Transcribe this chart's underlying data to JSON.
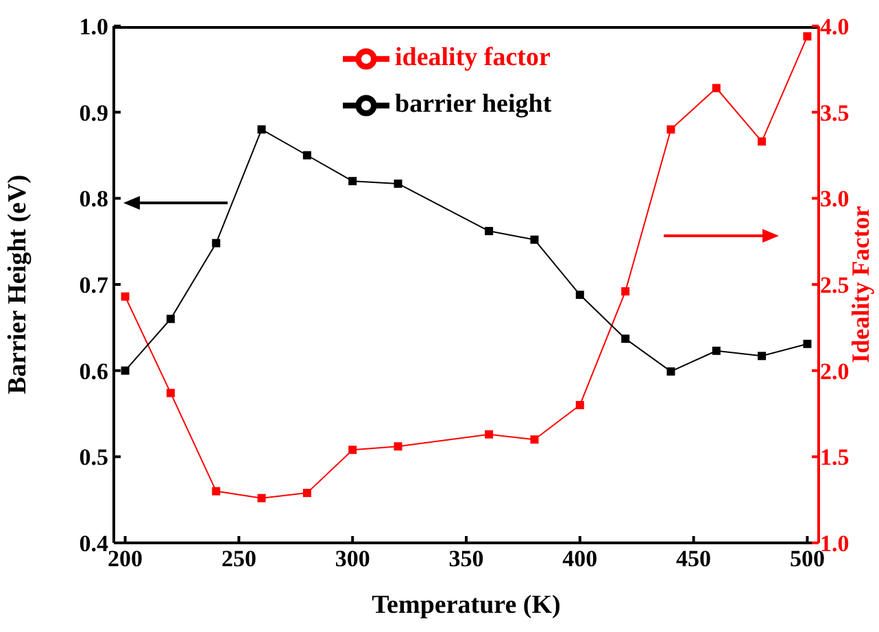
{
  "chart_data": {
    "type": "line",
    "xlabel": "Temperature (K)",
    "ylabel": "Barrier Height (eV)",
    "y2label": "Ideality Factor",
    "x": [
      200,
      220,
      240,
      260,
      280,
      300,
      320,
      360,
      380,
      400,
      420,
      440,
      460,
      480,
      500
    ],
    "series": [
      {
        "name": "ideality factor",
        "color": "#ff0000",
        "axis": "y2",
        "values": [
          2.43,
          1.87,
          1.3,
          1.26,
          1.29,
          1.54,
          1.56,
          1.63,
          1.6,
          1.8,
          2.46,
          3.4,
          3.64,
          3.33,
          3.94
        ]
      },
      {
        "name": "barrier height",
        "color": "#000000",
        "values": [
          0.6,
          0.66,
          0.748,
          0.88,
          0.85,
          0.82,
          0.817,
          0.762,
          0.752,
          0.688,
          0.637,
          0.599,
          0.623,
          0.617,
          0.631
        ]
      }
    ],
    "xlim": [
      195,
      505
    ],
    "xticks": [
      200,
      250,
      300,
      350,
      400,
      450,
      500
    ],
    "ylim": [
      0.4,
      1.0
    ],
    "yticks": [
      0.4,
      0.5,
      0.6,
      0.7,
      0.8,
      0.9,
      {
        "value": 1.0,
        "label": "1.0"
      }
    ],
    "y2lim": [
      1.0,
      4.0
    ],
    "y2ticks": [
      {
        "value": 1.0,
        "label": "1.0"
      },
      1.5,
      {
        "value": 2.0,
        "label": "2.0"
      },
      2.5,
      {
        "value": 3.0,
        "label": "3.0"
      },
      3.5,
      {
        "value": 4.0,
        "label": "4.0"
      }
    ],
    "grid": false,
    "legend": "top",
    "marker": "square",
    "line_style": "solid"
  }
}
